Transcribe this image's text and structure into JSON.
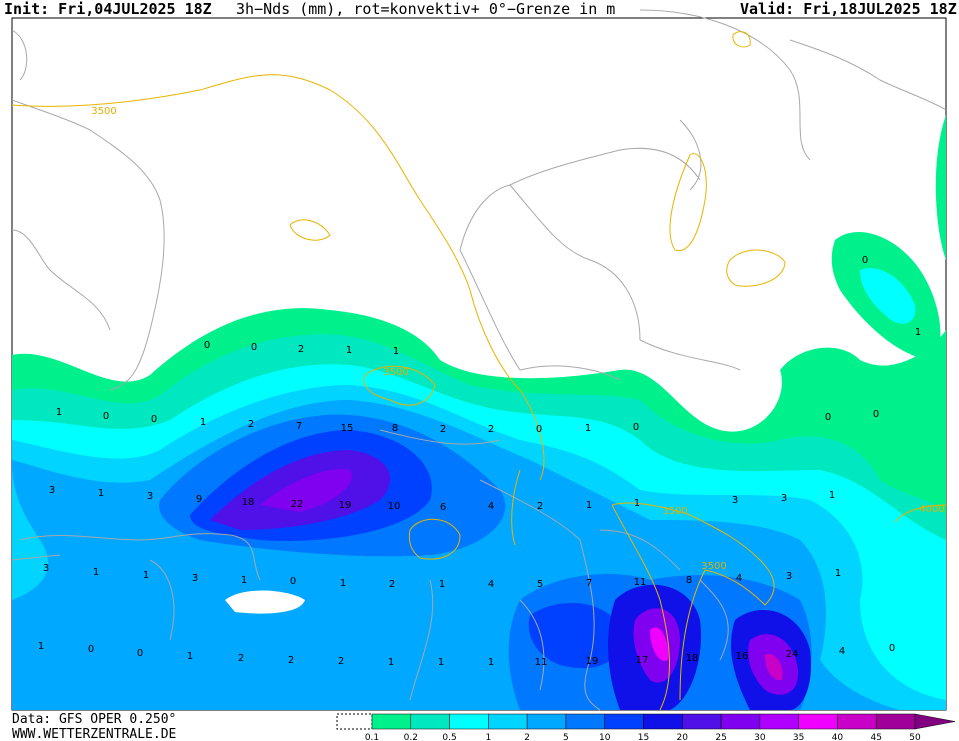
{
  "header": {
    "init": "Init: Fri,04JUL2025 18Z",
    "title": "3h−Nds (mm), rot=konvektiv+ 0°−Grenze in m",
    "valid": "Valid: Fri,18JUL2025 18Z"
  },
  "map_values": [
    0,
    0,
    2,
    1,
    1,
    1,
    0,
    0,
    1,
    2,
    7,
    15,
    8,
    2,
    2,
    0,
    1,
    0,
    0,
    1,
    0,
    0,
    3,
    1,
    3,
    9,
    18,
    22,
    19,
    10,
    6,
    4,
    2,
    1,
    1,
    3,
    3,
    1,
    3,
    1,
    1,
    3,
    1,
    0,
    1,
    2,
    1,
    4,
    5,
    7,
    11,
    8,
    4,
    3,
    1,
    1,
    0,
    0,
    1,
    2,
    2,
    2,
    1,
    1,
    1,
    11,
    19,
    17,
    18,
    16,
    24,
    4,
    0
  ],
  "contour_labels": [
    3500,
    3500,
    3500,
    3500,
    4000
  ],
  "footer": {
    "data": "Data: GFS OPER 0.250°",
    "site": "WWW.WETTERZENTRALE.DE"
  },
  "colorbar": {
    "labels": [
      0.1,
      0.2,
      0.5,
      1,
      2,
      5,
      10,
      15,
      20,
      25,
      30,
      35,
      40,
      45,
      50
    ],
    "colors": [
      "#00f08c",
      "#00e8c0",
      "#00ffff",
      "#00d4ff",
      "#00a8ff",
      "#0078ff",
      "#0040ff",
      "#1010e8",
      "#5010e8",
      "#8000f0",
      "#b000ff",
      "#f000ff",
      "#c800c8",
      "#a00098",
      "#800080"
    ]
  }
}
